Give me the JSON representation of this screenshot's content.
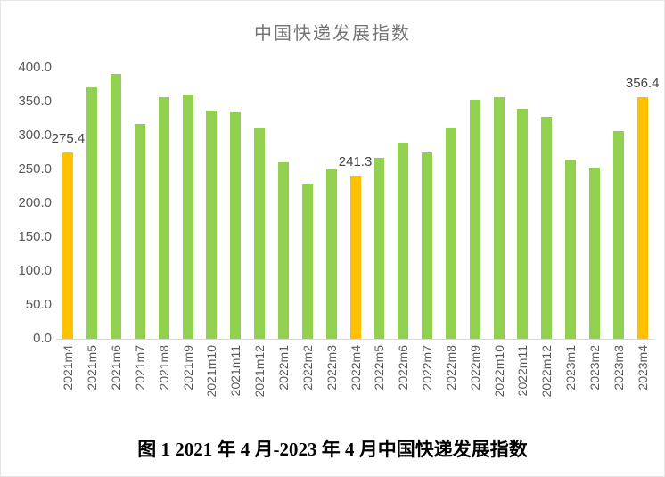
{
  "title": "中国快递发展指数",
  "caption": "图 1  2021 年 4 月-2023 年 4 月中国快递发展指数",
  "chart_data": {
    "type": "bar",
    "title": "中国快递发展指数",
    "categories": [
      "2021m4",
      "2021m5",
      "2021m6",
      "2021m7",
      "2021m8",
      "2021m9",
      "2021m10",
      "2021m11",
      "2021m12",
      "2022m1",
      "2022m2",
      "2022m3",
      "2022m4",
      "2022m5",
      "2022m6",
      "2022m7",
      "2022m8",
      "2022m9",
      "2022m10",
      "2022m11",
      "2022m12",
      "2023m1",
      "2023m2",
      "2023m3",
      "2023m4"
    ],
    "values": [
      275.4,
      371,
      391,
      317,
      357,
      360,
      337,
      334,
      311,
      260,
      229,
      250,
      241.3,
      267,
      289,
      275,
      311,
      352,
      357,
      339,
      327,
      264,
      253,
      307,
      356.4
    ],
    "highlight_indices": [
      0,
      12,
      24
    ],
    "point_labels": {
      "0": "275.4",
      "12": "241.3",
      "24": "356.4"
    },
    "bar_color": "#92D050",
    "highlight_color": "#FFC000",
    "yticks": [
      {
        "label": "400.0",
        "value": 400
      },
      {
        "label": "350.0",
        "value": 350
      },
      {
        "label": "300.0",
        "value": 300
      },
      {
        "label": "250.0",
        "value": 250
      },
      {
        "label": "200.0",
        "value": 200
      },
      {
        "label": "150.0",
        "value": 150
      },
      {
        "label": "100.0",
        "value": 100
      },
      {
        "label": "50.0",
        "value": 50
      },
      {
        "label": "0.0",
        "value": 0
      }
    ],
    "ylim": [
      0,
      400
    ],
    "xlabel": "",
    "ylabel": "",
    "grid": false,
    "legend": false,
    "axis_line_color": "#d9d9d9",
    "tick_text_color": "#595959",
    "title_color": "#747474"
  }
}
